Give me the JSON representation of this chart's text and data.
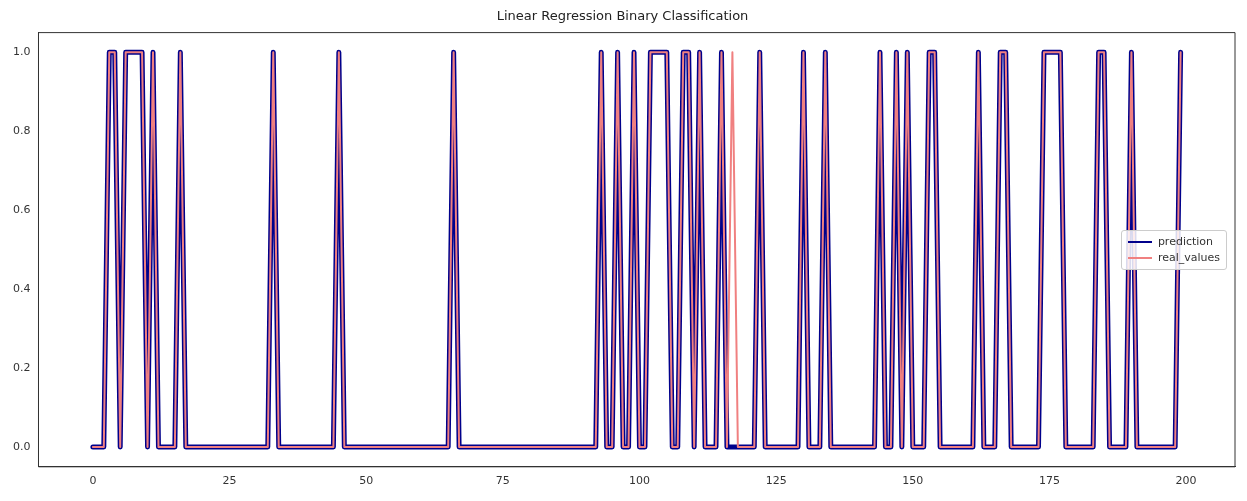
{
  "chart_data": {
    "type": "line",
    "title": "Linear Regression Binary Classification",
    "x": [
      0,
      1,
      2,
      3,
      4,
      5,
      6,
      7,
      8,
      9,
      10,
      11,
      12,
      13,
      14,
      15,
      16,
      17,
      18,
      19,
      20,
      21,
      22,
      23,
      24,
      25,
      26,
      27,
      28,
      29,
      30,
      31,
      32,
      33,
      34,
      35,
      36,
      37,
      38,
      39,
      40,
      41,
      42,
      43,
      44,
      45,
      46,
      47,
      48,
      49,
      50,
      51,
      52,
      53,
      54,
      55,
      56,
      57,
      58,
      59,
      60,
      61,
      62,
      63,
      64,
      65,
      66,
      67,
      68,
      69,
      70,
      71,
      72,
      73,
      74,
      75,
      76,
      77,
      78,
      79,
      80,
      81,
      82,
      83,
      84,
      85,
      86,
      87,
      88,
      89,
      90,
      91,
      92,
      93,
      94,
      95,
      96,
      97,
      98,
      99,
      100,
      101,
      102,
      103,
      104,
      105,
      106,
      107,
      108,
      109,
      110,
      111,
      112,
      113,
      114,
      115,
      116,
      117,
      118,
      119,
      120,
      121,
      122,
      123,
      124,
      125,
      126,
      127,
      128,
      129,
      130,
      131,
      132,
      133,
      134,
      135,
      136,
      137,
      138,
      139,
      140,
      141,
      142,
      143,
      144,
      145,
      146,
      147,
      148,
      149,
      150,
      151,
      152,
      153,
      154,
      155,
      156,
      157,
      158,
      159,
      160,
      161,
      162,
      163,
      164,
      165,
      166,
      167,
      168,
      169,
      170,
      171,
      172,
      173,
      174,
      175,
      176,
      177,
      178,
      179,
      180,
      181,
      182,
      183,
      184,
      185,
      186,
      187,
      188,
      189,
      190,
      191,
      192,
      193,
      194,
      195,
      196,
      197,
      198,
      199
    ],
    "series": [
      {
        "name": "prediction",
        "color": "#00008b",
        "values": [
          0,
          0,
          0,
          1,
          1,
          0,
          1,
          1,
          1,
          1,
          0,
          1,
          0,
          0,
          0,
          0,
          1,
          0,
          0,
          0,
          0,
          0,
          0,
          0,
          0,
          0,
          0,
          0,
          0,
          0,
          0,
          0,
          0,
          1,
          0,
          0,
          0,
          0,
          0,
          0,
          0,
          0,
          0,
          0,
          0,
          1,
          0,
          0,
          0,
          0,
          0,
          0,
          0,
          0,
          0,
          0,
          0,
          0,
          0,
          0,
          0,
          0,
          0,
          0,
          0,
          0,
          1,
          0,
          0,
          0,
          0,
          0,
          0,
          0,
          0,
          0,
          0,
          0,
          0,
          0,
          0,
          0,
          0,
          0,
          0,
          0,
          0,
          0,
          0,
          0,
          0,
          0,
          0,
          1,
          0,
          0,
          1,
          0,
          0,
          1,
          0,
          0,
          1,
          1,
          1,
          1,
          0,
          0,
          1,
          1,
          0,
          1,
          0,
          0,
          0,
          1,
          0,
          0,
          0,
          0,
          0,
          0,
          1,
          0,
          0,
          0,
          0,
          0,
          0,
          0,
          1,
          0,
          0,
          0,
          1,
          0,
          0,
          0,
          0,
          0,
          0,
          0,
          0,
          0,
          1,
          0,
          0,
          1,
          0,
          1,
          0,
          0,
          0,
          1,
          1,
          0,
          0,
          0,
          0,
          0,
          0,
          0,
          1,
          0,
          0,
          0,
          1,
          1,
          0,
          0,
          0,
          0,
          0,
          0,
          1,
          1,
          1,
          1,
          0,
          0,
          0,
          0,
          0,
          0,
          1,
          1,
          0,
          0,
          0,
          0,
          1,
          0,
          0,
          0,
          0,
          0,
          0,
          0,
          0,
          1
        ]
      },
      {
        "name": "real_values",
        "color": "#f08080",
        "values": [
          0,
          0,
          0,
          1,
          1,
          0,
          1,
          1,
          1,
          1,
          0,
          1,
          0,
          0,
          0,
          0,
          1,
          0,
          0,
          0,
          0,
          0,
          0,
          0,
          0,
          0,
          0,
          0,
          0,
          0,
          0,
          0,
          0,
          1,
          0,
          0,
          0,
          0,
          0,
          0,
          0,
          0,
          0,
          0,
          0,
          1,
          0,
          0,
          0,
          0,
          0,
          0,
          0,
          0,
          0,
          0,
          0,
          0,
          0,
          0,
          0,
          0,
          0,
          0,
          0,
          0,
          1,
          0,
          0,
          0,
          0,
          0,
          0,
          0,
          0,
          0,
          0,
          0,
          0,
          0,
          0,
          0,
          0,
          0,
          0,
          0,
          0,
          0,
          0,
          0,
          0,
          0,
          0,
          1,
          0,
          0,
          1,
          0,
          0,
          1,
          0,
          0,
          1,
          1,
          1,
          1,
          0,
          0,
          1,
          1,
          0,
          1,
          0,
          0,
          0,
          1,
          0,
          1,
          0,
          0,
          0,
          0,
          1,
          0,
          0,
          0,
          0,
          0,
          0,
          0,
          1,
          0,
          0,
          0,
          1,
          0,
          0,
          0,
          0,
          0,
          0,
          0,
          0,
          0,
          1,
          0,
          0,
          1,
          0,
          1,
          0,
          0,
          0,
          1,
          1,
          0,
          0,
          0,
          0,
          0,
          0,
          0,
          1,
          0,
          0,
          0,
          1,
          1,
          0,
          0,
          0,
          0,
          0,
          0,
          1,
          1,
          1,
          1,
          0,
          0,
          0,
          0,
          0,
          0,
          1,
          1,
          0,
          0,
          0,
          0,
          1,
          0,
          0,
          0,
          0,
          0,
          0,
          0,
          0,
          1
        ]
      }
    ],
    "xlim": [
      -9.95,
      208.95
    ],
    "xticks": [
      0,
      25,
      50,
      75,
      100,
      125,
      150,
      175,
      200
    ],
    "ylim": [
      -0.05,
      1.05
    ],
    "yticks": [
      {
        "value": 0,
        "label": "0.0"
      },
      {
        "value": 0.2,
        "label": "0.2"
      },
      {
        "value": 0.4,
        "label": "0.4"
      },
      {
        "value": 0.6,
        "label": "0.6"
      },
      {
        "value": 0.8,
        "label": "0.8"
      },
      {
        "value": 1,
        "label": "1.0"
      }
    ],
    "legend": "right",
    "grid": false,
    "marker": "none",
    "line_style": "solid"
  }
}
